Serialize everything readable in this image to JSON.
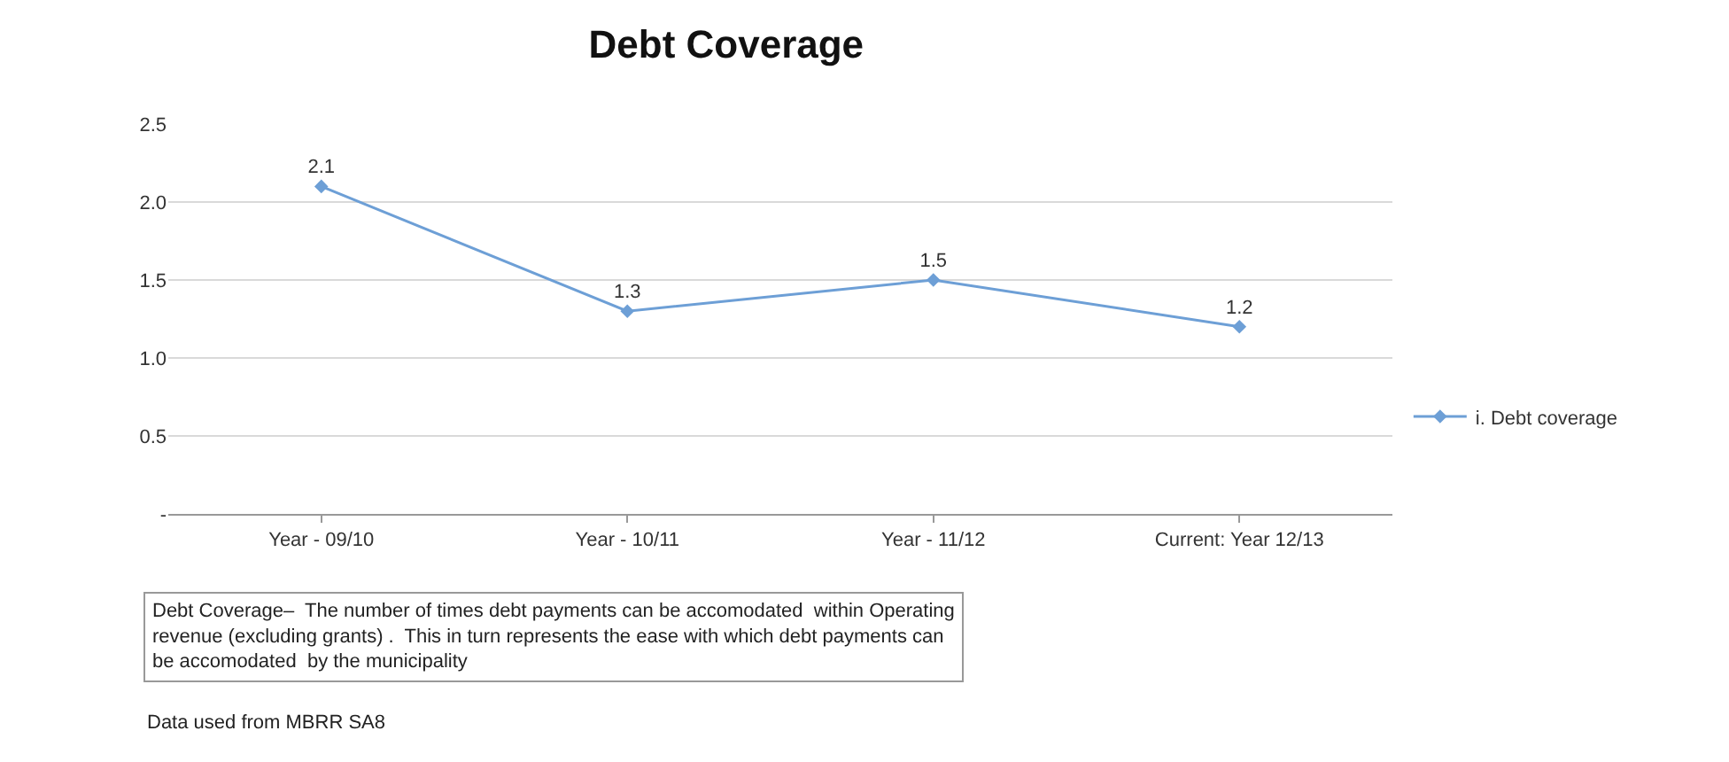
{
  "chart_data": {
    "type": "line",
    "title": "Debt Coverage",
    "categories": [
      "Year - 09/10",
      "Year - 10/11",
      "Year - 11/12",
      "Current: Year 12/13"
    ],
    "series": [
      {
        "name": "i. Debt coverage",
        "color": "#6d9fd6",
        "values": [
          2.1,
          1.3,
          1.5,
          1.2
        ]
      }
    ],
    "ylim": [
      0,
      2.5
    ],
    "yticks": [
      {
        "value": 0,
        "label": "-"
      },
      0.5,
      {
        "value": 1,
        "label": "1.0"
      },
      1.5,
      {
        "value": 2,
        "label": "2.0"
      },
      2.5
    ],
    "data_labels": true,
    "grid": "y",
    "legend": "right",
    "marker": "diamond",
    "line_style": "solid",
    "annotations": [
      "Debt Coverage–  The number of times debt payments can be accomodated  within Operating revenue (excluding grants) .  This in turn represents the ease with which debt payments can be accomodated  by the municipality",
      "Data used from MBRR SA8"
    ]
  }
}
